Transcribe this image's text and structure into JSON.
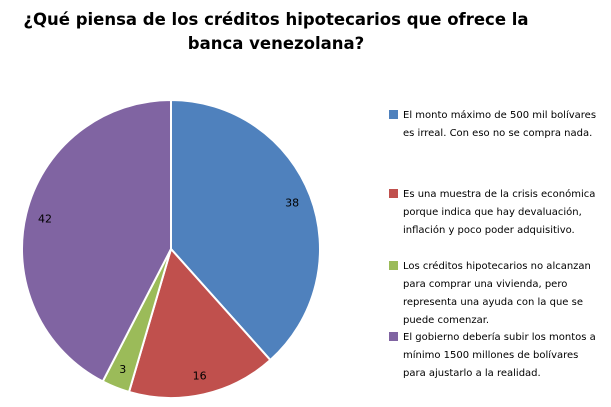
{
  "chart_data": {
    "type": "pie",
    "title": "¿Qué piensa de los créditos hipotecarios que ofrece la banca venezolana?",
    "values": [
      38,
      16,
      3,
      42
    ],
    "data_labels": [
      "38",
      "16",
      "3",
      "42"
    ],
    "labels": [
      "El monto máximo de 500 mil bolívares es irreal. Con eso no se compra nada.",
      "Es una muestra de la crisis económica porque indica que hay devaluación, inflación y poco poder adquisitivo.",
      "Los créditos hipotecarios no alcanzan para comprar una vivienda, pero representa una ayuda con la que se puede comenzar.",
      "El gobierno debería subir los montos a mínimo 1500 millones de bolívares para ajustarlo a la realidad."
    ],
    "colors": [
      "#4F81BD",
      "#C0504D",
      "#9BBB59",
      "#8064A2"
    ],
    "label_color": "#000000",
    "slice_border_color": "#FFFFFF",
    "start_angle_deg": 0,
    "direction": "clockwise",
    "legend_position": "right"
  }
}
